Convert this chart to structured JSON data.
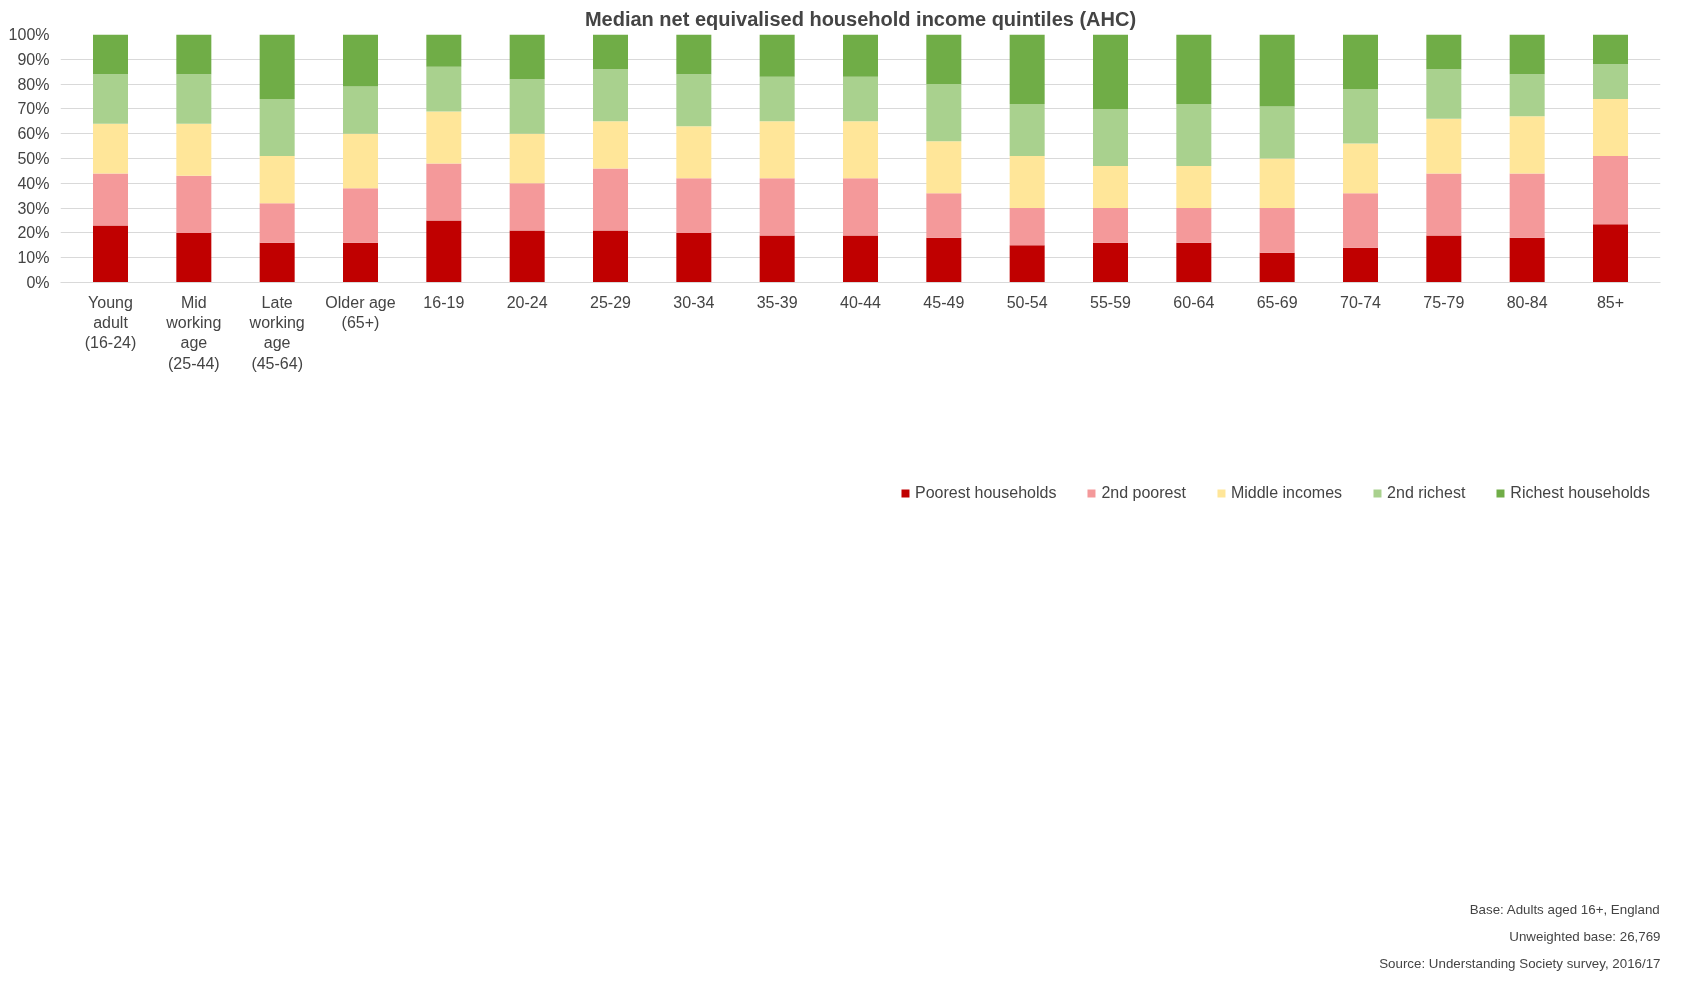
{
  "chart_data": {
    "type": "bar",
    "stacked": true,
    "title": "Median net equivalised household income quintiles (AHC)",
    "categories": [
      "Young adult (16-24)",
      "Mid working age (25-44)",
      "Late working age (45-64)",
      "Older age (65+)",
      "16-19",
      "20-24",
      "25-29",
      "30-34",
      "35-39",
      "40-44",
      "45-49",
      "50-54",
      "55-59",
      "60-64",
      "65-69",
      "70-74",
      "75-79",
      "80-84",
      "85+"
    ],
    "series": [
      {
        "name": "Poorest households",
        "color": "#c00000",
        "values": [
          23,
          20,
          16,
          16,
          25,
          21,
          21,
          20,
          19,
          19,
          18,
          15,
          16,
          16,
          12,
          14,
          19,
          18,
          23.5
        ]
      },
      {
        "name": "2nd poorest",
        "color": "#f4999a",
        "values": [
          21,
          23,
          16,
          22,
          23,
          19,
          25,
          22,
          23,
          23,
          18,
          15,
          14,
          14,
          18,
          22,
          25,
          26,
          27.5
        ]
      },
      {
        "name": "Middle incomes",
        "color": "#ffe699",
        "values": [
          20,
          21,
          19,
          22,
          21,
          20,
          19,
          21,
          23,
          23,
          21,
          21,
          17,
          17,
          20,
          20,
          22,
          23,
          23
        ]
      },
      {
        "name": "2nd richest",
        "color": "#a9d18e",
        "values": [
          20,
          20,
          23,
          19,
          18,
          22,
          21,
          21,
          18,
          18,
          23,
          21,
          23,
          25,
          21,
          22,
          20,
          17,
          14
        ]
      },
      {
        "name": "Richest households",
        "color": "#70ad47",
        "values": [
          16,
          16,
          26,
          21,
          13,
          18,
          14,
          16,
          17,
          17,
          20,
          28,
          30,
          28,
          29,
          22,
          14,
          16,
          12
        ]
      }
    ],
    "ylim": [
      0,
      100
    ],
    "yticks": [
      {
        "value": 0,
        "label": "0%"
      },
      {
        "value": 10,
        "label": "10%"
      },
      {
        "value": 20,
        "label": "20%"
      },
      {
        "value": 30,
        "label": "30%"
      },
      {
        "value": 40,
        "label": "40%"
      },
      {
        "value": 50,
        "label": "50%"
      },
      {
        "value": 60,
        "label": "60%"
      },
      {
        "value": 70,
        "label": "70%"
      },
      {
        "value": 80,
        "label": "80%"
      },
      {
        "value": 90,
        "label": "90%"
      },
      {
        "value": 100,
        "label": "100%"
      }
    ],
    "grid": "y",
    "legend": "bottom",
    "annotations": [
      "Base: Adults aged 16+, England",
      "Unweighted base: 26,769",
      "Source: Understanding Society survey, 2016/17"
    ]
  }
}
